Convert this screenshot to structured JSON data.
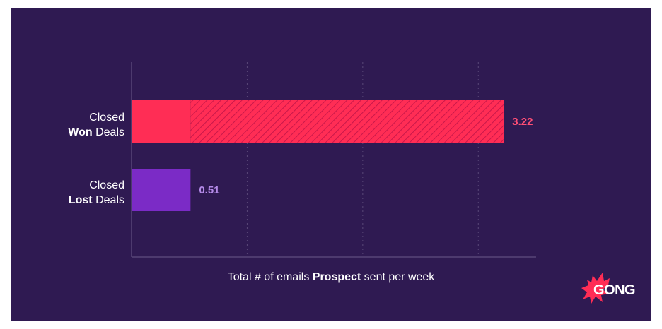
{
  "chart_data": {
    "type": "bar",
    "orientation": "horizontal",
    "categories": [
      {
        "line1": "Closed",
        "bold": "Won",
        "rest": " Deals"
      },
      {
        "line1": "Closed",
        "bold": "Lost",
        "rest": " Deals"
      }
    ],
    "values": [
      3.22,
      0.51
    ],
    "value_labels": [
      "3.22",
      "0.51"
    ],
    "colors": [
      "#ff2d55",
      "#7b2bc6"
    ],
    "baseline_segment": 0.51,
    "xlabel": {
      "pre": "Total # of emails ",
      "bold": "Prospect",
      "post": " sent per week"
    },
    "xlim": [
      0,
      3.5
    ],
    "grid": true
  },
  "colors": {
    "background": "#2f1a52",
    "axis": "#6b5a8a",
    "grid": "#5a4878"
  },
  "logo": {
    "text": "GONG",
    "color": "#ff2d55"
  }
}
